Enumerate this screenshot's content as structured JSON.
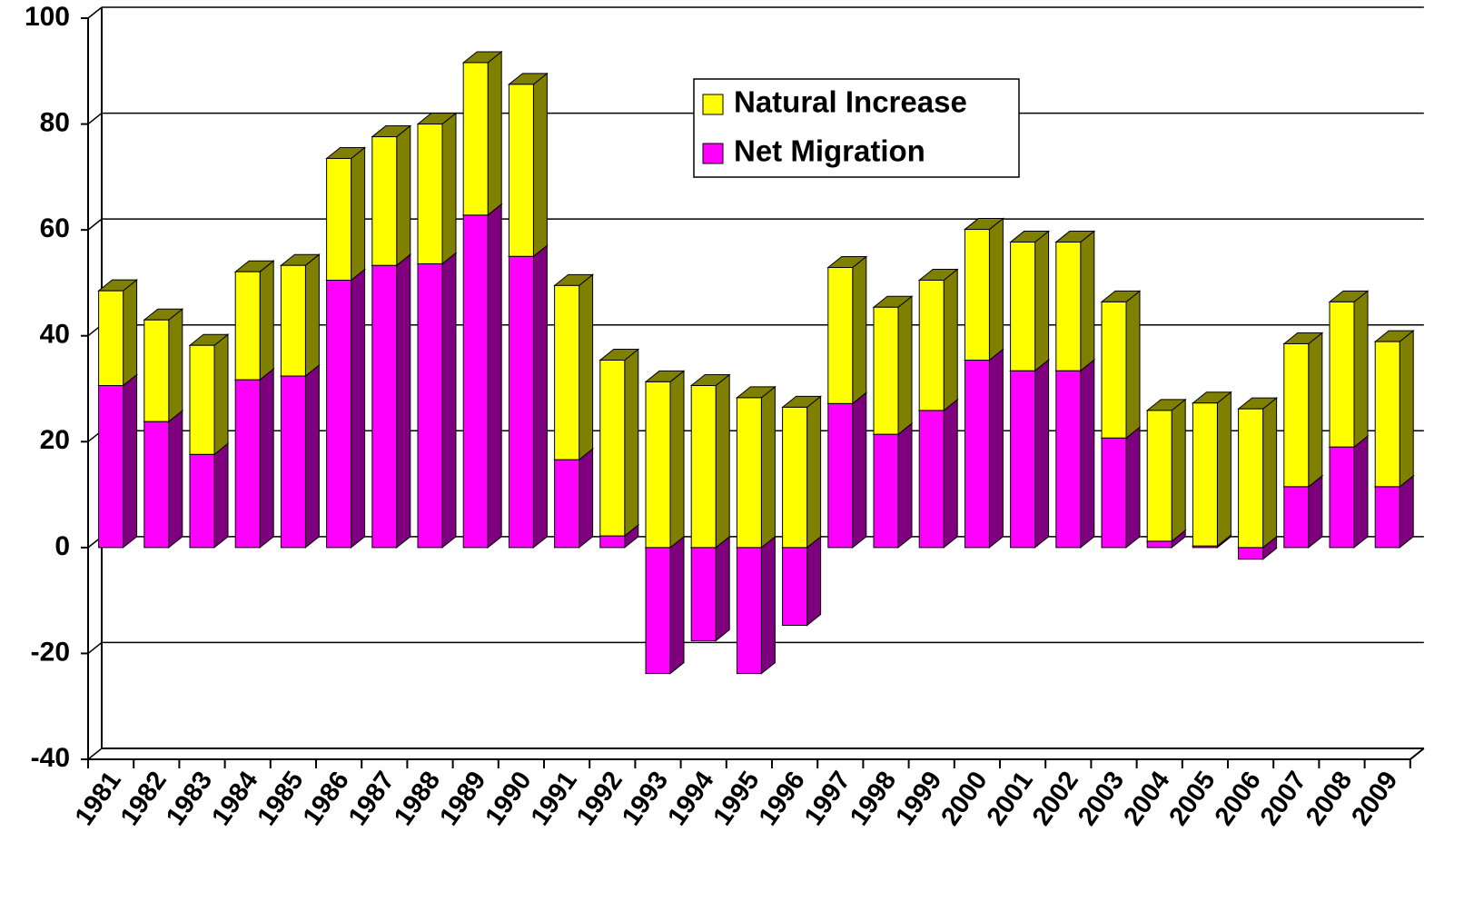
{
  "chart_data": {
    "type": "bar",
    "stacked": true,
    "three_d": true,
    "categories": [
      "1981",
      "1982",
      "1983",
      "1984",
      "1985",
      "1986",
      "1987",
      "1988",
      "1989",
      "1990",
      "1991",
      "1992",
      "1993",
      "1994",
      "1995",
      "1996",
      "1997",
      "1998",
      "1999",
      "2000",
      "2001",
      "2002",
      "2003",
      "2004",
      "2005",
      "2006",
      "2007",
      "2008",
      "2009"
    ],
    "series": [
      {
        "name": "Natural Increase",
        "color": "#ffff00",
        "values": [
          17.9,
          19.2,
          20.6,
          20.4,
          20.9,
          23.0,
          24.3,
          26.4,
          28.8,
          32.5,
          32.9,
          33.2,
          31.3,
          30.6,
          28.3,
          26.5,
          25.7,
          24.0,
          24.6,
          24.7,
          24.3,
          24.3,
          25.7,
          24.7,
          27.0,
          26.2,
          27.0,
          27.4,
          27.4
        ]
      },
      {
        "name": "Net Migration",
        "color": "#ff00ff",
        "values": [
          30.6,
          23.8,
          17.6,
          31.7,
          32.4,
          50.5,
          53.3,
          53.6,
          62.8,
          55.0,
          16.6,
          2.2,
          -23.8,
          -17.6,
          -23.8,
          -14.7,
          27.2,
          21.4,
          25.9,
          35.4,
          33.4,
          33.4,
          20.7,
          1.2,
          0.3,
          -2.2,
          11.5,
          19.0,
          11.5
        ]
      }
    ],
    "ylim": [
      -40,
      100
    ],
    "yticks": [
      -40,
      -20,
      0,
      20,
      40,
      60,
      80,
      100
    ],
    "grid": true,
    "legend": "upper center"
  }
}
